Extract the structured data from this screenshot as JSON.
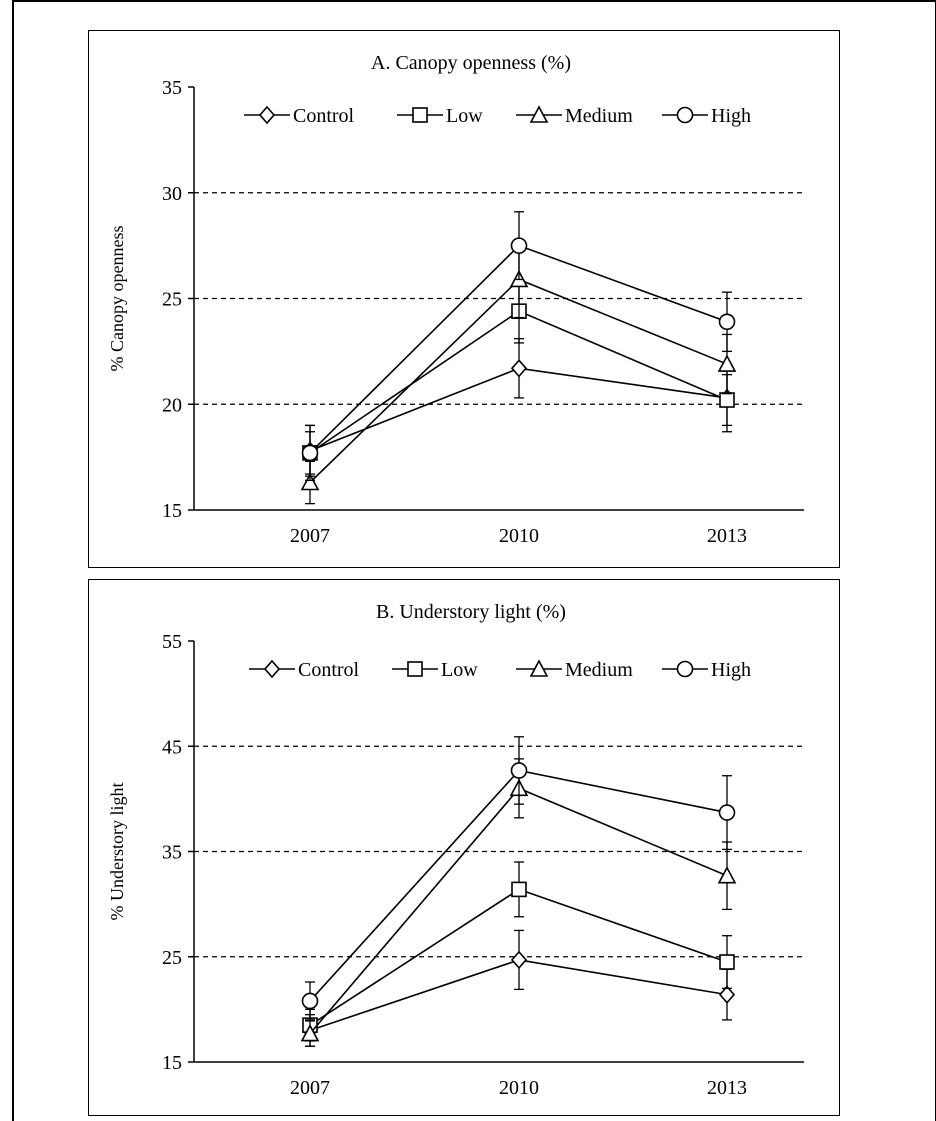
{
  "chart_data": [
    {
      "type": "line",
      "title": "A. Canopy openness (%)",
      "ylabel": "% Canopy openness",
      "xlabel": "",
      "categories": [
        "2007",
        "2010",
        "2013"
      ],
      "ylim": [
        15,
        35
      ],
      "yticks": [
        15,
        20,
        25,
        30,
        35
      ],
      "gridlines": [
        20,
        25,
        30
      ],
      "grid_style": "dashed horizontal",
      "legend_position": "top",
      "series": [
        {
          "name": "Control",
          "marker": "diamond",
          "values": [
            17.8,
            21.7,
            20.3
          ],
          "errors": [
            1.2,
            1.4,
            1.6
          ]
        },
        {
          "name": "Low",
          "marker": "square",
          "values": [
            17.7,
            24.4,
            20.2
          ],
          "errors": [
            1.0,
            1.5,
            1.2
          ]
        },
        {
          "name": "Medium",
          "marker": "triangle",
          "values": [
            16.3,
            25.9,
            21.9
          ],
          "errors": [
            1.0,
            1.8,
            1.4
          ]
        },
        {
          "name": "High",
          "marker": "circle",
          "values": [
            17.7,
            27.5,
            23.9
          ],
          "errors": [
            1.3,
            1.6,
            1.4
          ]
        }
      ]
    },
    {
      "type": "line",
      "title": "B. Understory light (%)",
      "ylabel": "% Understory light",
      "xlabel": "",
      "categories": [
        "2007",
        "2010",
        "2013"
      ],
      "ylim": [
        15,
        55
      ],
      "yticks": [
        15,
        25,
        35,
        45,
        55
      ],
      "gridlines": [
        25,
        35,
        45
      ],
      "grid_style": "dashed horizontal",
      "legend_position": "top",
      "series": [
        {
          "name": "Control",
          "marker": "diamond",
          "values": [
            18.0,
            24.7,
            21.4
          ],
          "errors": [
            1.5,
            2.8,
            2.4
          ]
        },
        {
          "name": "Low",
          "marker": "square",
          "values": [
            18.5,
            31.4,
            24.5
          ],
          "errors": [
            1.5,
            2.6,
            2.5
          ]
        },
        {
          "name": "Medium",
          "marker": "triangle",
          "values": [
            17.7,
            41.0,
            32.7
          ],
          "errors": [
            1.2,
            2.8,
            3.2
          ]
        },
        {
          "name": "High",
          "marker": "circle",
          "values": [
            20.8,
            42.7,
            38.7
          ],
          "errors": [
            1.8,
            3.2,
            3.5
          ]
        }
      ]
    }
  ]
}
